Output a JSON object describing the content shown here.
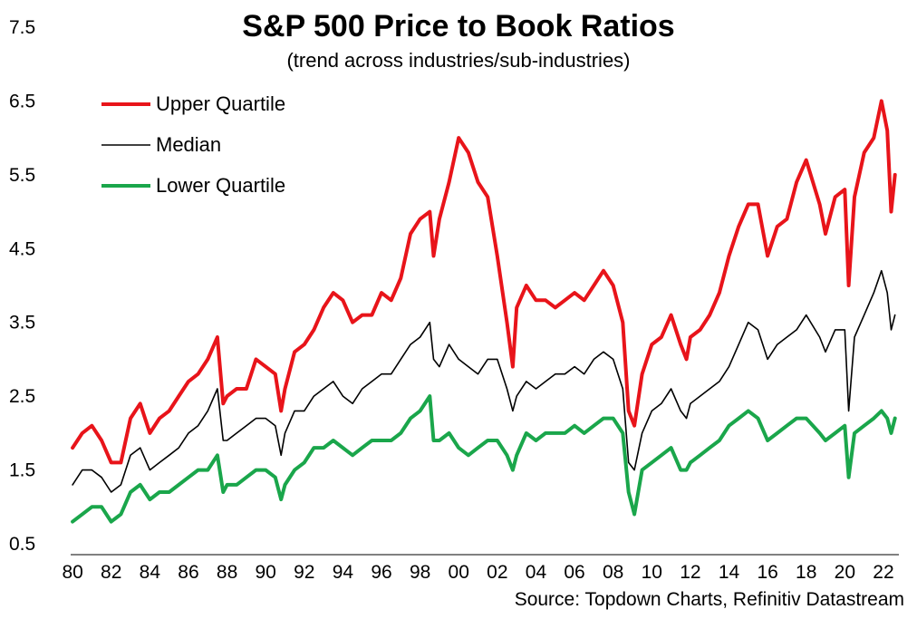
{
  "chart_data": {
    "type": "line",
    "title": "S&P 500 Price to Book Ratios",
    "subtitle": "(trend across industries/sub-industries)",
    "source": "Source: Topdown Charts, Refinitiv Datastream",
    "xlabel": "",
    "ylabel": "",
    "xlim": [
      1979.9,
      2022.8
    ],
    "ylim": [
      0.5,
      7.5
    ],
    "yticks": [
      "0.5",
      "1.5",
      "2.5",
      "3.5",
      "4.5",
      "5.5",
      "6.5",
      "7.5"
    ],
    "xticks": [
      "80",
      "82",
      "84",
      "86",
      "88",
      "90",
      "92",
      "94",
      "96",
      "98",
      "00",
      "02",
      "04",
      "06",
      "08",
      "10",
      "12",
      "14",
      "16",
      "18",
      "20",
      "22"
    ],
    "grid": false,
    "legend_position": "top-left",
    "x": [
      1980.0,
      1980.5,
      1981.0,
      1981.5,
      1982.0,
      1982.5,
      1983.0,
      1983.5,
      1984.0,
      1984.5,
      1985.0,
      1985.5,
      1986.0,
      1986.5,
      1987.0,
      1987.5,
      1987.8,
      1988.0,
      1988.5,
      1989.0,
      1989.5,
      1990.0,
      1990.5,
      1990.8,
      1991.0,
      1991.5,
      1992.0,
      1992.5,
      1993.0,
      1993.5,
      1994.0,
      1994.5,
      1995.0,
      1995.5,
      1996.0,
      1996.5,
      1997.0,
      1997.5,
      1998.0,
      1998.5,
      1998.7,
      1999.0,
      1999.5,
      2000.0,
      2000.5,
      2001.0,
      2001.5,
      2002.0,
      2002.5,
      2002.8,
      2003.0,
      2003.5,
      2004.0,
      2004.5,
      2005.0,
      2005.5,
      2006.0,
      2006.5,
      2007.0,
      2007.5,
      2008.0,
      2008.5,
      2008.8,
      2009.1,
      2009.5,
      2010.0,
      2010.5,
      2011.0,
      2011.5,
      2011.8,
      2012.0,
      2012.5,
      2013.0,
      2013.5,
      2014.0,
      2014.5,
      2015.0,
      2015.5,
      2016.0,
      2016.5,
      2017.0,
      2017.5,
      2018.0,
      2018.7,
      2019.0,
      2019.5,
      2020.0,
      2020.2,
      2020.5,
      2021.0,
      2021.5,
      2021.9,
      2022.2,
      2022.4,
      2022.6
    ],
    "series": [
      {
        "name": "Upper Quartile",
        "color": "#e8141a",
        "line_width": "thick",
        "values": [
          1.8,
          2.0,
          2.1,
          1.9,
          1.6,
          1.6,
          2.2,
          2.4,
          2.0,
          2.2,
          2.3,
          2.5,
          2.7,
          2.8,
          3.0,
          3.3,
          2.4,
          2.5,
          2.6,
          2.6,
          3.0,
          2.9,
          2.8,
          2.3,
          2.6,
          3.1,
          3.2,
          3.4,
          3.7,
          3.9,
          3.8,
          3.5,
          3.6,
          3.6,
          3.9,
          3.8,
          4.1,
          4.7,
          4.9,
          5.0,
          4.4,
          4.9,
          5.4,
          6.0,
          5.8,
          5.4,
          5.2,
          4.4,
          3.5,
          2.9,
          3.7,
          4.0,
          3.8,
          3.8,
          3.7,
          3.8,
          3.9,
          3.8,
          4.0,
          4.2,
          4.0,
          3.5,
          2.3,
          2.1,
          2.8,
          3.2,
          3.3,
          3.6,
          3.2,
          3.0,
          3.3,
          3.4,
          3.6,
          3.9,
          4.4,
          4.8,
          5.1,
          5.1,
          4.4,
          4.8,
          4.9,
          5.4,
          5.7,
          5.1,
          4.7,
          5.2,
          5.3,
          4.0,
          5.2,
          5.8,
          6.0,
          6.5,
          6.1,
          5.0,
          5.5
        ]
      },
      {
        "name": "Median",
        "color": "#000000",
        "line_width": "thin",
        "values": [
          1.3,
          1.5,
          1.5,
          1.4,
          1.2,
          1.3,
          1.7,
          1.8,
          1.5,
          1.6,
          1.7,
          1.8,
          2.0,
          2.1,
          2.3,
          2.6,
          1.9,
          1.9,
          2.0,
          2.1,
          2.2,
          2.2,
          2.1,
          1.7,
          2.0,
          2.3,
          2.3,
          2.5,
          2.6,
          2.7,
          2.5,
          2.4,
          2.6,
          2.7,
          2.8,
          2.8,
          3.0,
          3.2,
          3.3,
          3.5,
          3.0,
          2.9,
          3.2,
          3.0,
          2.9,
          2.8,
          3.0,
          3.0,
          2.6,
          2.3,
          2.5,
          2.7,
          2.6,
          2.7,
          2.8,
          2.8,
          2.9,
          2.8,
          3.0,
          3.1,
          3.0,
          2.6,
          1.6,
          1.5,
          2.0,
          2.3,
          2.4,
          2.6,
          2.3,
          2.2,
          2.4,
          2.5,
          2.6,
          2.7,
          2.9,
          3.2,
          3.5,
          3.4,
          3.0,
          3.2,
          3.3,
          3.4,
          3.6,
          3.3,
          3.1,
          3.4,
          3.4,
          2.3,
          3.3,
          3.6,
          3.9,
          4.2,
          3.9,
          3.4,
          3.6
        ]
      },
      {
        "name": "Lower Quartile",
        "color": "#1aa64b",
        "line_width": "thick",
        "values": [
          0.8,
          0.9,
          1.0,
          1.0,
          0.8,
          0.9,
          1.2,
          1.3,
          1.1,
          1.2,
          1.2,
          1.3,
          1.4,
          1.5,
          1.5,
          1.7,
          1.2,
          1.3,
          1.3,
          1.4,
          1.5,
          1.5,
          1.4,
          1.1,
          1.3,
          1.5,
          1.6,
          1.8,
          1.8,
          1.9,
          1.8,
          1.7,
          1.8,
          1.9,
          1.9,
          1.9,
          2.0,
          2.2,
          2.3,
          2.5,
          1.9,
          1.9,
          2.0,
          1.8,
          1.7,
          1.8,
          1.9,
          1.9,
          1.7,
          1.5,
          1.7,
          2.0,
          1.9,
          2.0,
          2.0,
          2.0,
          2.1,
          2.0,
          2.1,
          2.2,
          2.2,
          2.0,
          1.2,
          0.9,
          1.5,
          1.6,
          1.7,
          1.8,
          1.5,
          1.5,
          1.6,
          1.7,
          1.8,
          1.9,
          2.1,
          2.2,
          2.3,
          2.2,
          1.9,
          2.0,
          2.1,
          2.2,
          2.2,
          2.0,
          1.9,
          2.0,
          2.1,
          1.4,
          2.0,
          2.1,
          2.2,
          2.3,
          2.2,
          2.0,
          2.2
        ]
      }
    ]
  }
}
